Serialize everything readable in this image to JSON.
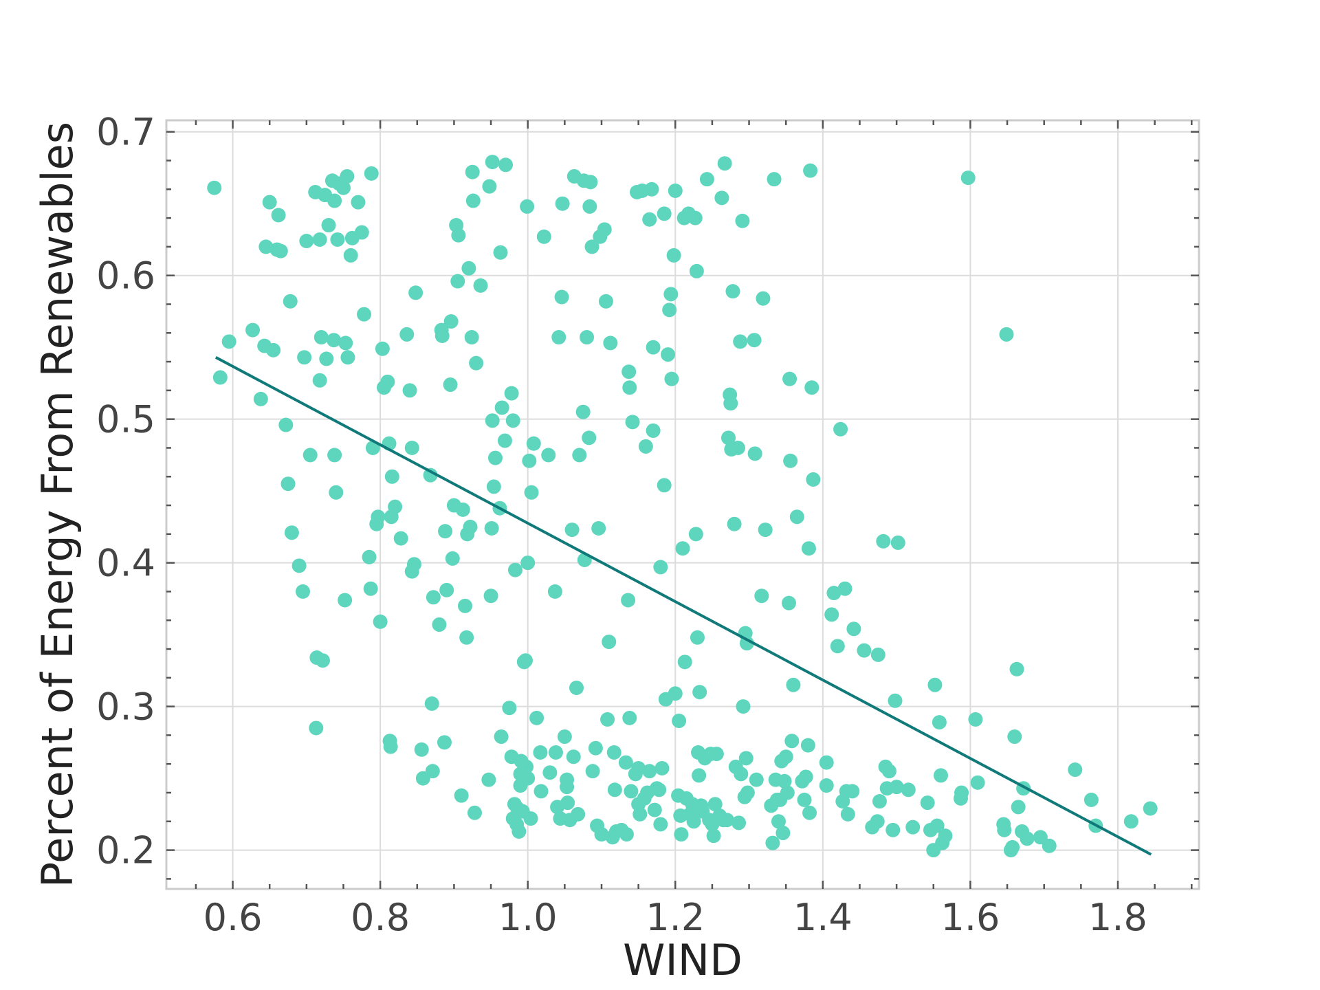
{
  "chart_data": {
    "type": "scatter",
    "title": "",
    "xlabel": "WIND",
    "ylabel": "Percent of Energy From Renewables",
    "xlim": [
      0.51,
      1.91
    ],
    "ylim": [
      0.173,
      0.708
    ],
    "x_ticks": [
      0.6,
      0.8,
      1.0,
      1.2,
      1.4,
      1.6,
      1.8
    ],
    "x_tick_labels": [
      "0.6",
      "0.8",
      "1.0",
      "1.2",
      "1.4",
      "1.6",
      "1.8"
    ],
    "y_ticks": [
      0.2,
      0.3,
      0.4,
      0.5,
      0.6,
      0.7
    ],
    "y_tick_labels": [
      "0.2",
      "0.3",
      "0.4",
      "0.5",
      "0.6",
      "0.7"
    ],
    "grid": true,
    "point_color": "#5dd6bd",
    "trend_color": "#107a7a",
    "trend_line": [
      [
        0.577,
        0.543
      ],
      [
        1.845,
        0.197
      ]
    ],
    "points": [
      [
        0.575,
        0.661
      ],
      [
        0.583,
        0.529
      ],
      [
        0.595,
        0.554
      ],
      [
        0.627,
        0.562
      ],
      [
        0.638,
        0.514
      ],
      [
        0.643,
        0.551
      ],
      [
        0.645,
        0.62
      ],
      [
        0.65,
        0.651
      ],
      [
        0.655,
        0.548
      ],
      [
        0.66,
        0.618
      ],
      [
        0.662,
        0.642
      ],
      [
        0.665,
        0.617
      ],
      [
        0.672,
        0.496
      ],
      [
        0.675,
        0.455
      ],
      [
        0.678,
        0.582
      ],
      [
        0.68,
        0.421
      ],
      [
        0.69,
        0.398
      ],
      [
        0.695,
        0.38
      ],
      [
        0.697,
        0.543
      ],
      [
        0.7,
        0.624
      ],
      [
        0.705,
        0.475
      ],
      [
        0.712,
        0.658
      ],
      [
        0.713,
        0.285
      ],
      [
        0.714,
        0.334
      ],
      [
        0.718,
        0.527
      ],
      [
        0.718,
        0.625
      ],
      [
        0.72,
        0.557
      ],
      [
        0.722,
        0.332
      ],
      [
        0.725,
        0.656
      ],
      [
        0.727,
        0.542
      ],
      [
        0.73,
        0.635
      ],
      [
        0.735,
        0.666
      ],
      [
        0.737,
        0.555
      ],
      [
        0.738,
        0.652
      ],
      [
        0.738,
        0.475
      ],
      [
        0.74,
        0.449
      ],
      [
        0.742,
        0.625
      ],
      [
        0.744,
        0.664
      ],
      [
        0.75,
        0.661
      ],
      [
        0.752,
        0.374
      ],
      [
        0.753,
        0.553
      ],
      [
        0.755,
        0.669
      ],
      [
        0.756,
        0.543
      ],
      [
        0.76,
        0.614
      ],
      [
        0.762,
        0.626
      ],
      [
        0.77,
        0.651
      ],
      [
        0.775,
        0.63
      ],
      [
        0.778,
        0.573
      ],
      [
        0.785,
        0.404
      ],
      [
        0.787,
        0.382
      ],
      [
        0.788,
        0.671
      ],
      [
        0.79,
        0.48
      ],
      [
        0.795,
        0.427
      ],
      [
        0.797,
        0.432
      ],
      [
        0.8,
        0.359
      ],
      [
        0.803,
        0.549
      ],
      [
        0.805,
        0.522
      ],
      [
        0.81,
        0.526
      ],
      [
        0.812,
        0.483
      ],
      [
        0.813,
        0.276
      ],
      [
        0.814,
        0.272
      ],
      [
        0.815,
        0.432
      ],
      [
        0.816,
        0.46
      ],
      [
        0.82,
        0.439
      ],
      [
        0.828,
        0.417
      ],
      [
        0.836,
        0.559
      ],
      [
        0.84,
        0.52
      ],
      [
        0.843,
        0.48
      ],
      [
        0.843,
        0.394
      ],
      [
        0.846,
        0.399
      ],
      [
        0.848,
        0.588
      ],
      [
        0.856,
        0.27
      ],
      [
        0.858,
        0.25
      ],
      [
        0.868,
        0.461
      ],
      [
        0.87,
        0.302
      ],
      [
        0.871,
        0.255
      ],
      [
        0.872,
        0.376
      ],
      [
        0.88,
        0.357
      ],
      [
        0.883,
        0.562
      ],
      [
        0.884,
        0.558
      ],
      [
        0.887,
        0.275
      ],
      [
        0.888,
        0.422
      ],
      [
        0.89,
        0.381
      ],
      [
        0.895,
        0.524
      ],
      [
        0.896,
        0.568
      ],
      [
        0.898,
        0.403
      ],
      [
        0.9,
        0.44
      ],
      [
        0.903,
        0.635
      ],
      [
        0.905,
        0.596
      ],
      [
        0.906,
        0.628
      ],
      [
        0.91,
        0.238
      ],
      [
        0.912,
        0.437
      ],
      [
        0.915,
        0.37
      ],
      [
        0.917,
        0.348
      ],
      [
        0.918,
        0.42
      ],
      [
        0.92,
        0.605
      ],
      [
        0.922,
        0.425
      ],
      [
        0.924,
        0.557
      ],
      [
        0.925,
        0.672
      ],
      [
        0.926,
        0.652
      ],
      [
        0.928,
        0.226
      ],
      [
        0.93,
        0.539
      ],
      [
        0.936,
        0.593
      ],
      [
        0.947,
        0.249
      ],
      [
        0.948,
        0.662
      ],
      [
        0.95,
        0.377
      ],
      [
        0.951,
        0.424
      ],
      [
        0.952,
        0.499
      ],
      [
        0.952,
        0.679
      ],
      [
        0.954,
        0.453
      ],
      [
        0.956,
        0.473
      ],
      [
        0.962,
        0.438
      ],
      [
        0.963,
        0.616
      ],
      [
        0.964,
        0.279
      ],
      [
        0.965,
        0.508
      ],
      [
        0.969,
        0.485
      ],
      [
        0.97,
        0.677
      ],
      [
        0.975,
        0.299
      ],
      [
        0.978,
        0.265
      ],
      [
        0.978,
        0.518
      ],
      [
        0.98,
        0.222
      ],
      [
        0.98,
        0.499
      ],
      [
        0.982,
        0.232
      ],
      [
        0.983,
        0.395
      ],
      [
        0.985,
        0.218
      ],
      [
        0.986,
        0.229
      ],
      [
        0.988,
        0.213
      ],
      [
        0.99,
        0.253
      ],
      [
        0.99,
        0.245
      ],
      [
        0.991,
        0.262
      ],
      [
        0.993,
        0.227
      ],
      [
        0.995,
        0.331
      ],
      [
        0.997,
        0.332
      ],
      [
        0.998,
        0.258
      ],
      [
        0.999,
        0.648
      ],
      [
        1.0,
        0.4
      ],
      [
        1.0,
        0.25
      ],
      [
        1.002,
        0.471
      ],
      [
        1.004,
        0.222
      ],
      [
        1.005,
        0.449
      ],
      [
        1.008,
        0.483
      ],
      [
        1.012,
        0.292
      ],
      [
        1.017,
        0.268
      ],
      [
        1.018,
        0.241
      ],
      [
        1.022,
        0.627
      ],
      [
        1.028,
        0.475
      ],
      [
        1.03,
        0.254
      ],
      [
        1.037,
        0.38
      ],
      [
        1.038,
        0.268
      ],
      [
        1.04,
        0.23
      ],
      [
        1.042,
        0.557
      ],
      [
        1.044,
        0.222
      ],
      [
        1.046,
        0.585
      ],
      [
        1.047,
        0.65
      ],
      [
        1.05,
        0.279
      ],
      [
        1.053,
        0.249
      ],
      [
        1.053,
        0.244
      ],
      [
        1.054,
        0.233
      ],
      [
        1.057,
        0.221
      ],
      [
        1.06,
        0.423
      ],
      [
        1.062,
        0.265
      ],
      [
        1.063,
        0.669
      ],
      [
        1.066,
        0.313
      ],
      [
        1.068,
        0.225
      ],
      [
        1.07,
        0.475
      ],
      [
        1.075,
        0.505
      ],
      [
        1.076,
        0.666
      ],
      [
        1.077,
        0.402
      ],
      [
        1.08,
        0.557
      ],
      [
        1.083,
        0.487
      ],
      [
        1.084,
        0.648
      ],
      [
        1.085,
        0.665
      ],
      [
        1.087,
        0.62
      ],
      [
        1.088,
        0.255
      ],
      [
        1.092,
        0.271
      ],
      [
        1.094,
        0.217
      ],
      [
        1.096,
        0.424
      ],
      [
        1.098,
        0.627
      ],
      [
        1.1,
        0.211
      ],
      [
        1.104,
        0.632
      ],
      [
        1.106,
        0.582
      ],
      [
        1.108,
        0.291
      ],
      [
        1.11,
        0.345
      ],
      [
        1.112,
        0.553
      ],
      [
        1.115,
        0.209
      ],
      [
        1.117,
        0.268
      ],
      [
        1.118,
        0.242
      ],
      [
        1.12,
        0.213
      ],
      [
        1.127,
        0.214
      ],
      [
        1.133,
        0.261
      ],
      [
        1.134,
        0.211
      ],
      [
        1.136,
        0.374
      ],
      [
        1.137,
        0.533
      ],
      [
        1.138,
        0.292
      ],
      [
        1.138,
        0.522
      ],
      [
        1.14,
        0.241
      ],
      [
        1.142,
        0.498
      ],
      [
        1.146,
        0.253
      ],
      [
        1.148,
        0.658
      ],
      [
        1.15,
        0.232
      ],
      [
        1.15,
        0.257
      ],
      [
        1.152,
        0.225
      ],
      [
        1.155,
        0.659
      ],
      [
        1.158,
        0.236
      ],
      [
        1.16,
        0.481
      ],
      [
        1.162,
        0.24
      ],
      [
        1.165,
        0.255
      ],
      [
        1.165,
        0.639
      ],
      [
        1.168,
        0.66
      ],
      [
        1.17,
        0.55
      ],
      [
        1.17,
        0.492
      ],
      [
        1.172,
        0.228
      ],
      [
        1.175,
        0.243
      ],
      [
        1.178,
        0.242
      ],
      [
        1.18,
        0.397
      ],
      [
        1.18,
        0.218
      ],
      [
        1.182,
        0.257
      ],
      [
        1.185,
        0.643
      ],
      [
        1.185,
        0.454
      ],
      [
        1.187,
        0.305
      ],
      [
        1.19,
        0.545
      ],
      [
        1.192,
        0.576
      ],
      [
        1.194,
        0.587
      ],
      [
        1.195,
        0.528
      ],
      [
        1.198,
        0.614
      ],
      [
        1.2,
        0.309
      ],
      [
        1.2,
        0.659
      ],
      [
        1.204,
        0.238
      ],
      [
        1.205,
        0.29
      ],
      [
        1.207,
        0.224
      ],
      [
        1.208,
        0.211
      ],
      [
        1.21,
        0.41
      ],
      [
        1.212,
        0.64
      ],
      [
        1.213,
        0.331
      ],
      [
        1.215,
        0.236
      ],
      [
        1.218,
        0.643
      ],
      [
        1.22,
        0.225
      ],
      [
        1.223,
        0.232
      ],
      [
        1.225,
        0.22
      ],
      [
        1.227,
        0.64
      ],
      [
        1.228,
        0.42
      ],
      [
        1.229,
        0.603
      ],
      [
        1.23,
        0.348
      ],
      [
        1.231,
        0.268
      ],
      [
        1.232,
        0.252
      ],
      [
        1.233,
        0.31
      ],
      [
        1.235,
        0.231
      ],
      [
        1.237,
        0.227
      ],
      [
        1.24,
        0.264
      ],
      [
        1.243,
        0.667
      ],
      [
        1.246,
        0.221
      ],
      [
        1.248,
        0.267
      ],
      [
        1.25,
        0.218
      ],
      [
        1.252,
        0.21
      ],
      [
        1.254,
        0.232
      ],
      [
        1.256,
        0.267
      ],
      [
        1.26,
        0.224
      ],
      [
        1.263,
        0.654
      ],
      [
        1.265,
        0.221
      ],
      [
        1.267,
        0.678
      ],
      [
        1.27,
        0.221
      ],
      [
        1.272,
        0.487
      ],
      [
        1.274,
        0.517
      ],
      [
        1.275,
        0.511
      ],
      [
        1.276,
        0.479
      ],
      [
        1.278,
        0.589
      ],
      [
        1.28,
        0.427
      ],
      [
        1.282,
        0.258
      ],
      [
        1.285,
        0.48
      ],
      [
        1.286,
        0.219
      ],
      [
        1.288,
        0.554
      ],
      [
        1.289,
        0.253
      ],
      [
        1.291,
        0.638
      ],
      [
        1.292,
        0.3
      ],
      [
        1.294,
        0.237
      ],
      [
        1.295,
        0.351
      ],
      [
        1.296,
        0.264
      ],
      [
        1.297,
        0.344
      ],
      [
        1.298,
        0.24
      ],
      [
        1.307,
        0.555
      ],
      [
        1.308,
        0.476
      ],
      [
        1.31,
        0.249
      ],
      [
        1.317,
        0.377
      ],
      [
        1.319,
        0.584
      ],
      [
        1.322,
        0.423
      ],
      [
        1.33,
        0.231
      ],
      [
        1.332,
        0.205
      ],
      [
        1.334,
        0.667
      ],
      [
        1.336,
        0.249
      ],
      [
        1.338,
        0.235
      ],
      [
        1.34,
        0.22
      ],
      [
        1.342,
        0.235
      ],
      [
        1.344,
        0.262
      ],
      [
        1.346,
        0.212
      ],
      [
        1.348,
        0.248
      ],
      [
        1.35,
        0.265
      ],
      [
        1.352,
        0.24
      ],
      [
        1.354,
        0.372
      ],
      [
        1.355,
        0.528
      ],
      [
        1.356,
        0.471
      ],
      [
        1.358,
        0.276
      ],
      [
        1.36,
        0.315
      ],
      [
        1.365,
        0.432
      ],
      [
        1.372,
        0.248
      ],
      [
        1.375,
        0.235
      ],
      [
        1.377,
        0.251
      ],
      [
        1.38,
        0.273
      ],
      [
        1.381,
        0.41
      ],
      [
        1.382,
        0.226
      ],
      [
        1.383,
        0.673
      ],
      [
        1.385,
        0.522
      ],
      [
        1.387,
        0.458
      ],
      [
        1.405,
        0.245
      ],
      [
        1.405,
        0.261
      ],
      [
        1.412,
        0.364
      ],
      [
        1.415,
        0.379
      ],
      [
        1.42,
        0.342
      ],
      [
        1.424,
        0.493
      ],
      [
        1.427,
        0.234
      ],
      [
        1.43,
        0.382
      ],
      [
        1.432,
        0.241
      ],
      [
        1.434,
        0.225
      ],
      [
        1.44,
        0.241
      ],
      [
        1.442,
        0.354
      ],
      [
        1.456,
        0.339
      ],
      [
        1.467,
        0.216
      ],
      [
        1.474,
        0.22
      ],
      [
        1.475,
        0.336
      ],
      [
        1.477,
        0.234
      ],
      [
        1.482,
        0.415
      ],
      [
        1.485,
        0.258
      ],
      [
        1.487,
        0.243
      ],
      [
        1.49,
        0.255
      ],
      [
        1.495,
        0.214
      ],
      [
        1.498,
        0.304
      ],
      [
        1.5,
        0.244
      ],
      [
        1.502,
        0.414
      ],
      [
        1.516,
        0.242
      ],
      [
        1.522,
        0.216
      ],
      [
        1.542,
        0.233
      ],
      [
        1.546,
        0.214
      ],
      [
        1.55,
        0.2
      ],
      [
        1.552,
        0.315
      ],
      [
        1.555,
        0.217
      ],
      [
        1.558,
        0.289
      ],
      [
        1.56,
        0.252
      ],
      [
        1.562,
        0.205
      ],
      [
        1.566,
        0.21
      ],
      [
        1.587,
        0.236
      ],
      [
        1.588,
        0.24
      ],
      [
        1.597,
        0.668
      ],
      [
        1.607,
        0.291
      ],
      [
        1.61,
        0.247
      ],
      [
        1.645,
        0.218
      ],
      [
        1.646,
        0.214
      ],
      [
        1.649,
        0.559
      ],
      [
        1.655,
        0.2
      ],
      [
        1.657,
        0.202
      ],
      [
        1.66,
        0.279
      ],
      [
        1.663,
        0.326
      ],
      [
        1.665,
        0.23
      ],
      [
        1.67,
        0.213
      ],
      [
        1.672,
        0.243
      ],
      [
        1.677,
        0.208
      ],
      [
        1.695,
        0.209
      ],
      [
        1.707,
        0.203
      ],
      [
        1.742,
        0.256
      ],
      [
        1.764,
        0.235
      ],
      [
        1.77,
        0.217
      ],
      [
        1.818,
        0.22
      ],
      [
        1.844,
        0.229
      ]
    ]
  }
}
